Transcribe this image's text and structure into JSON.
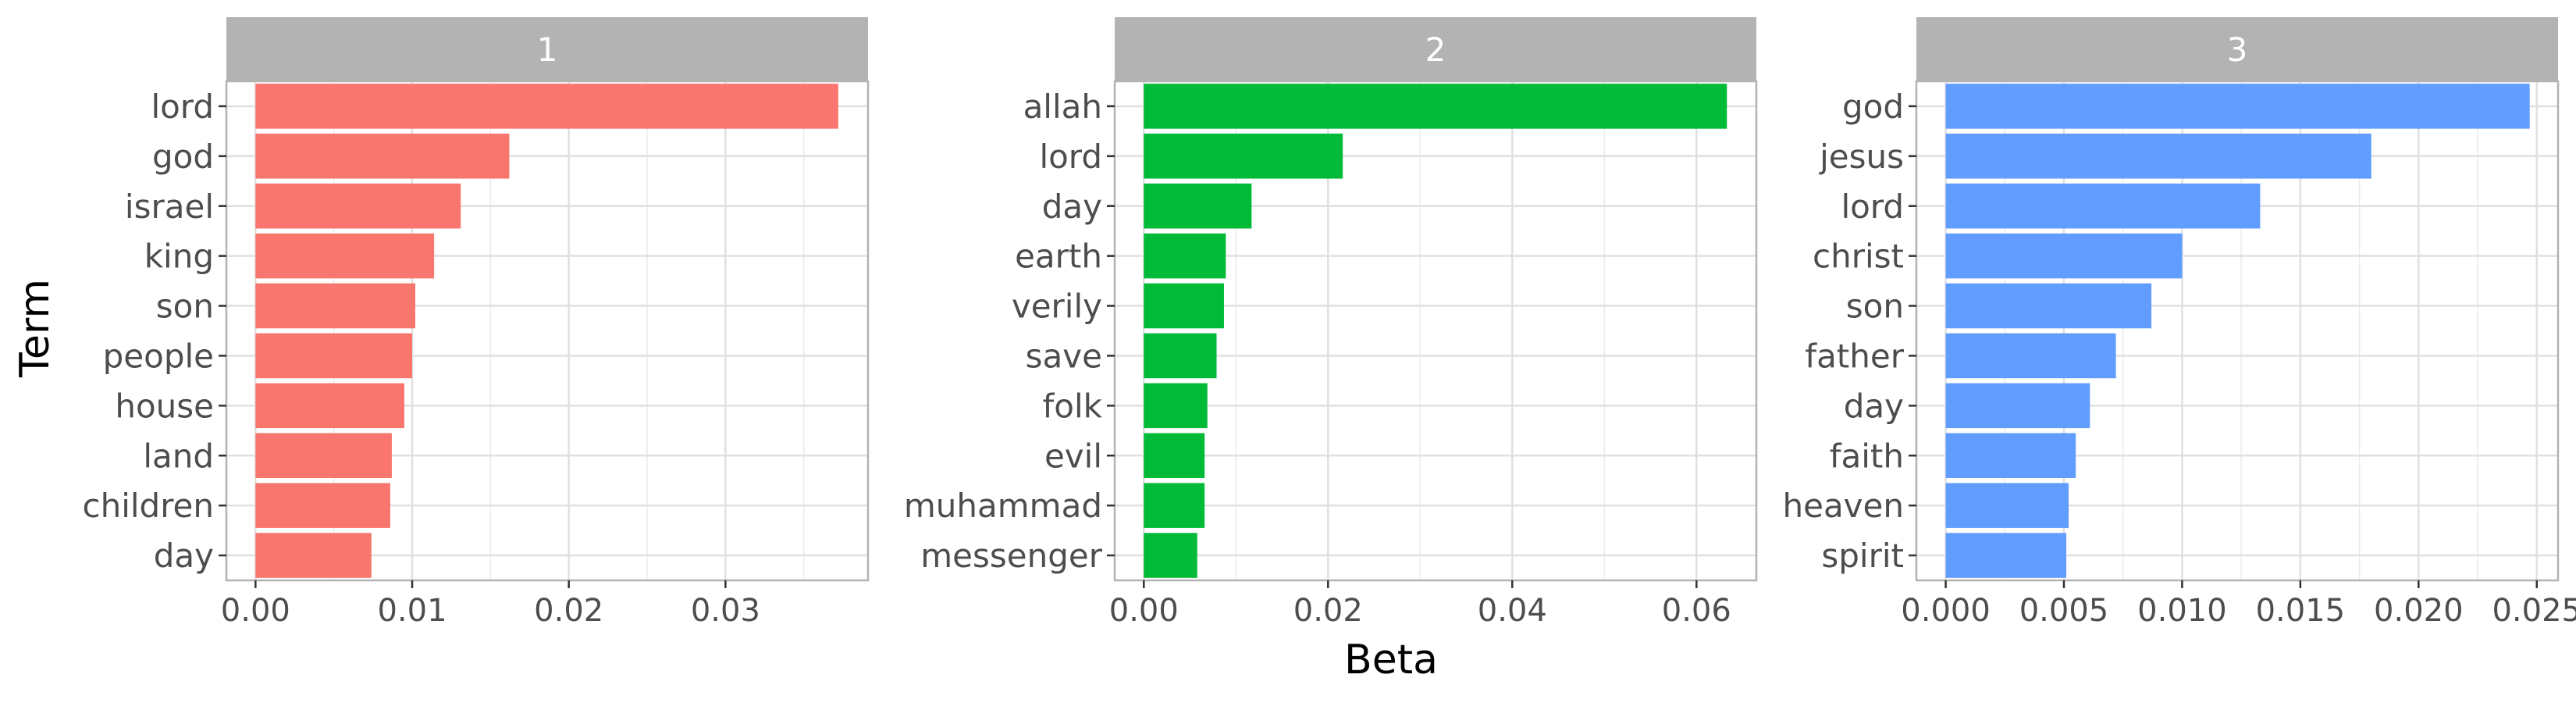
{
  "chart_data": {
    "type": "bar",
    "orientation": "horizontal",
    "xlabel": "Beta",
    "ylabel": "Term",
    "grid": true,
    "legend": "none",
    "facets": [
      {
        "label": "1",
        "color": "#F8766D",
        "categories": [
          "lord",
          "god",
          "israel",
          "king",
          "son",
          "people",
          "house",
          "land",
          "children",
          "day"
        ],
        "values": [
          0.0372,
          0.0162,
          0.0131,
          0.0114,
          0.0102,
          0.01,
          0.0095,
          0.0087,
          0.0086,
          0.0074
        ],
        "xlim": [
          -0.00186,
          0.0391
        ],
        "ticks": [
          0.0,
          0.01,
          0.02,
          0.03
        ],
        "tick_labels": [
          "0.00",
          "0.01",
          "0.02",
          "0.03"
        ]
      },
      {
        "label": "2",
        "color": "#00BA38",
        "categories": [
          "allah",
          "lord",
          "day",
          "earth",
          "verily",
          "save",
          "folk",
          "evil",
          "muhammad",
          "messenger"
        ],
        "values": [
          0.0633,
          0.0216,
          0.0117,
          0.0089,
          0.0087,
          0.0079,
          0.0069,
          0.0066,
          0.0066,
          0.0058
        ],
        "xlim": [
          -0.00316,
          0.0665
        ],
        "ticks": [
          0.0,
          0.02,
          0.04,
          0.06
        ],
        "tick_labels": [
          "0.00",
          "0.02",
          "0.04",
          "0.06"
        ]
      },
      {
        "label": "3",
        "color": "#619CFF",
        "categories": [
          "god",
          "jesus",
          "lord",
          "christ",
          "son",
          "father",
          "day",
          "faith",
          "heaven",
          "spirit"
        ],
        "values": [
          0.0247,
          0.018,
          0.0133,
          0.01,
          0.0087,
          0.0072,
          0.0061,
          0.0055,
          0.0052,
          0.0051
        ],
        "xlim": [
          -0.00124,
          0.0259
        ],
        "ticks": [
          0.0,
          0.005,
          0.01,
          0.015,
          0.02,
          0.025
        ],
        "tick_labels": [
          "0.000",
          "0.005",
          "0.010",
          "0.015",
          "0.020",
          "0.025"
        ]
      }
    ]
  }
}
